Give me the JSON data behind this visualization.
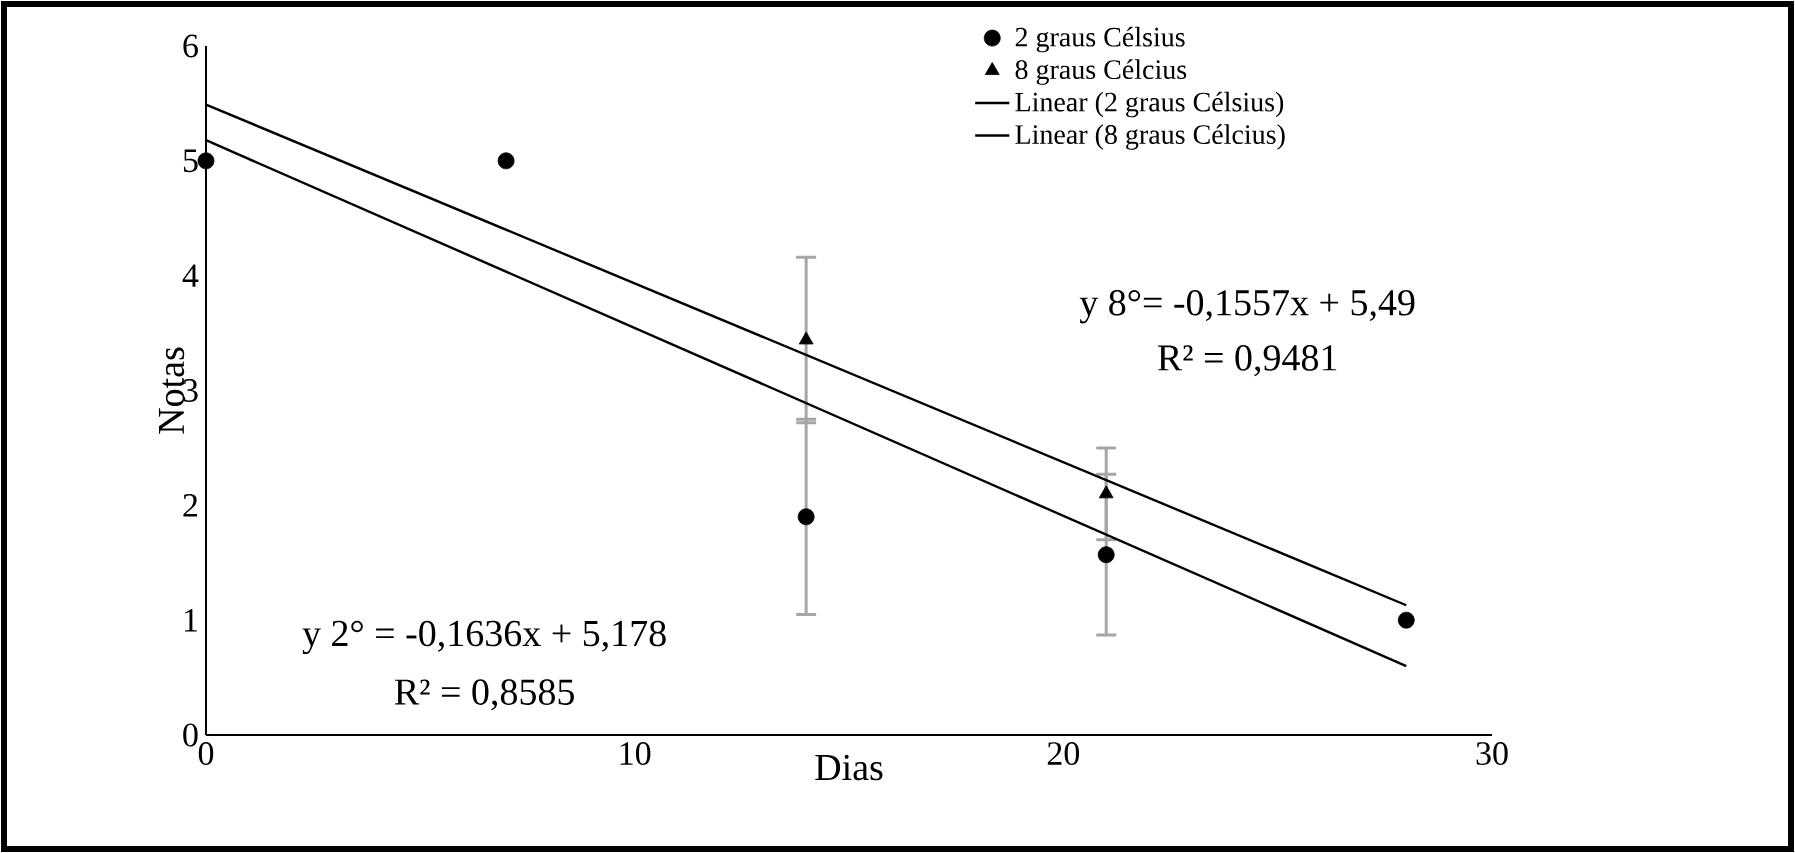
{
  "chart_data": {
    "type": "scatter",
    "xlabel": "Dias",
    "ylabel": "Notas",
    "x": [
      0,
      7,
      14,
      21,
      28
    ],
    "series": [
      {
        "name": "2 graus Célsius",
        "color": "#000000",
        "marker": "circle",
        "values": [
          5,
          5,
          1.9,
          1.57,
          1
        ],
        "errors": [
          null,
          null,
          0.85,
          0.7,
          null
        ]
      },
      {
        "name": "8 graus Célcius",
        "color": "#000000",
        "marker": "triangle",
        "values": [
          null,
          null,
          3.44,
          2.1,
          null
        ],
        "errors": [
          null,
          null,
          0.72,
          0.4,
          null
        ]
      },
      {
        "name": "Linear (2 graus Célsius)",
        "type": "line",
        "color": "#000000",
        "marker": "none",
        "line_style": "solid",
        "values": [
          5.18,
          null,
          null,
          null,
          0.6
        ]
      },
      {
        "name": "Linear (8 graus Célcius)",
        "type": "line",
        "color": "#000000",
        "marker": "none",
        "line_style": "solid",
        "values": [
          5.49,
          null,
          null,
          null,
          1.13
        ]
      }
    ],
    "annotations": [
      "y 8°= -0,1557x + 5,49",
      "R² = 0,9481",
      "y 2° = -0,1636x + 5,178",
      "R² = 0,8585"
    ],
    "xlim": [
      0,
      30
    ],
    "ylim": [
      0,
      6
    ],
    "xticks": [
      0,
      10,
      20,
      30
    ],
    "yticks": [
      0,
      1,
      2,
      3,
      4,
      5,
      6
    ],
    "grid": false,
    "legend": "top"
  }
}
